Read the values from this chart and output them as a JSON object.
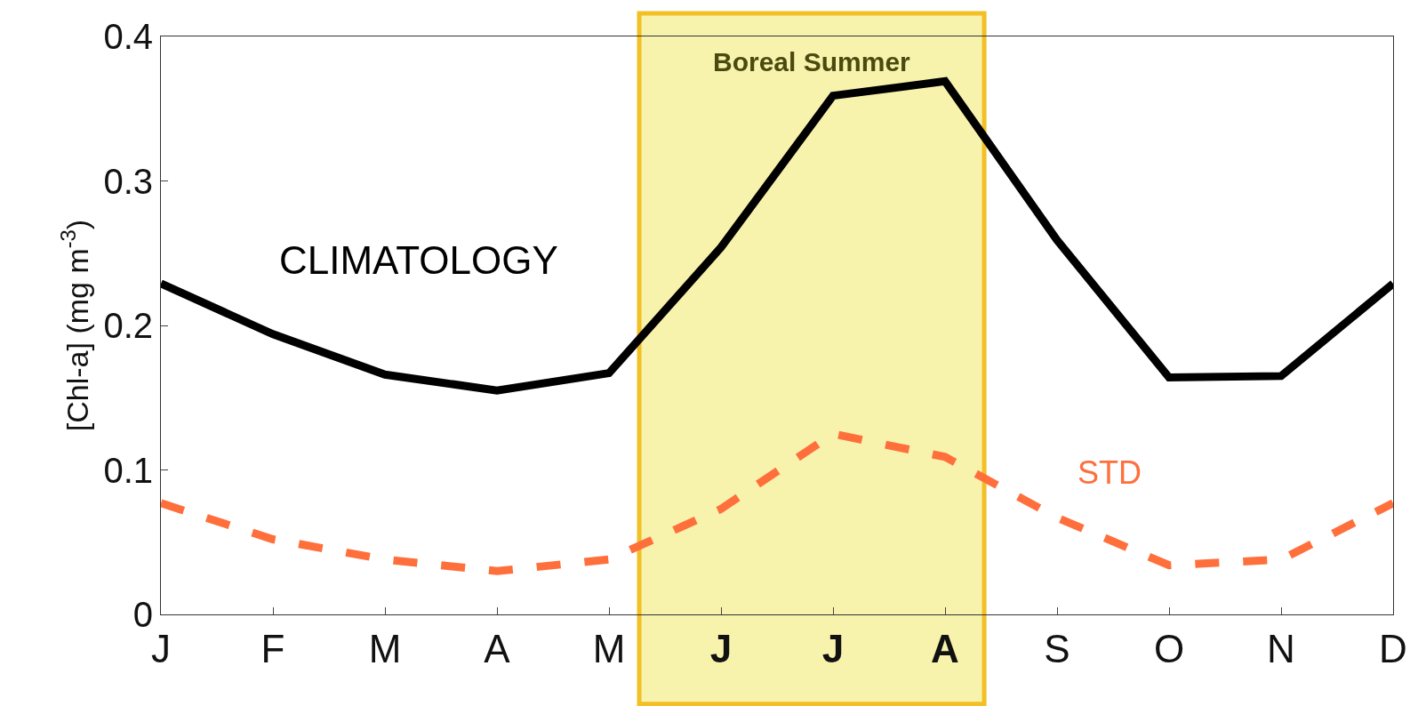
{
  "chart_data": {
    "type": "line",
    "ylabel": "[Chl-a] (mg m$^{-3}$)",
    "categories": [
      "J",
      "F",
      "M",
      "A",
      "M",
      "J",
      "J",
      "A",
      "S",
      "O",
      "N",
      "D"
    ],
    "ylim": [
      0,
      0.4
    ],
    "yticks": [
      0,
      0.1,
      0.2,
      0.3,
      0.4
    ],
    "series": [
      {
        "name": "CLIMATOLOGY",
        "color": "#000000",
        "line_style": "solid",
        "values": [
          0.229,
          0.194,
          0.166,
          0.155,
          0.167,
          0.254,
          0.359,
          0.369,
          0.259,
          0.164,
          0.165,
          0.229
        ]
      },
      {
        "name": "STD",
        "color": "#ff6f3c",
        "line_style": "dashed",
        "values": [
          0.077,
          0.052,
          0.038,
          0.03,
          0.038,
          0.073,
          0.125,
          0.109,
          0.067,
          0.034,
          0.038,
          0.077
        ]
      }
    ],
    "annotations": [
      "Boreal Summer"
    ],
    "grid": false,
    "legend": false,
    "marker": "none"
  }
}
